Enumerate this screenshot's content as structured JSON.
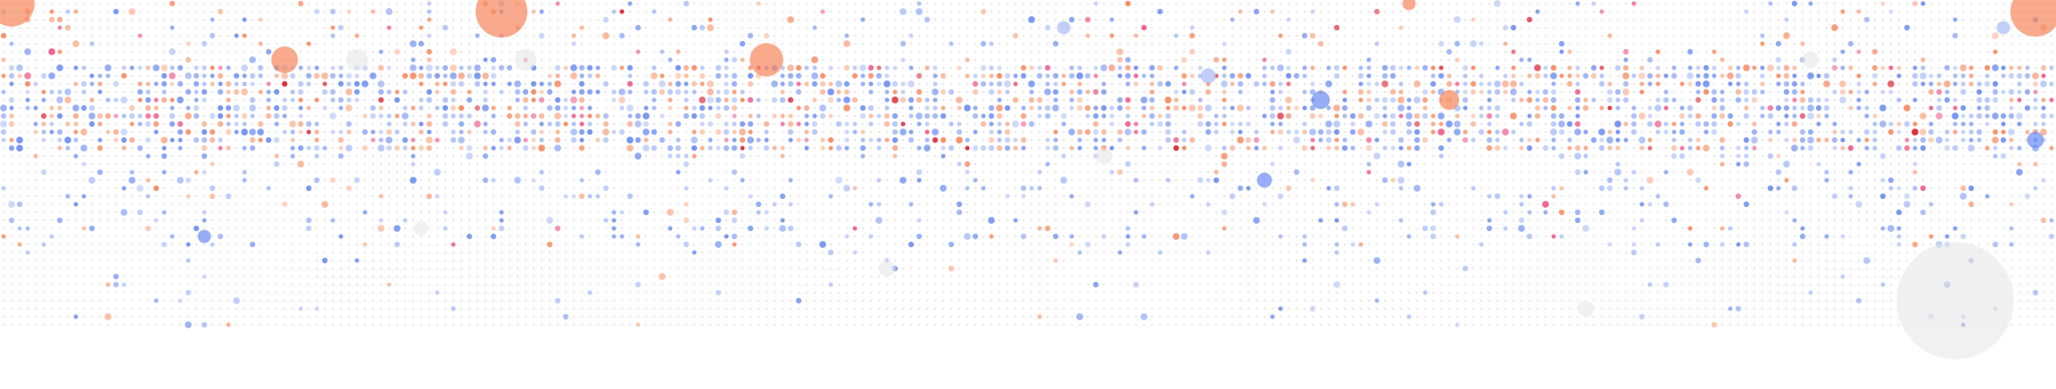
{
  "chart_data": {
    "type": "scatter",
    "grid": false,
    "legend": "none",
    "colors": {
      "background": "#ffffff",
      "neutral": "#dadada",
      "blue": "#6f8ff2",
      "light_blue": "#a9bdf7",
      "salmon": "#f7895f",
      "light_salmon": "#f9b292",
      "pink": "#f05a8c",
      "red": "#d8202f",
      "grey_bubble": "#e6e6e6"
    },
    "matrix": {
      "columns": 257,
      "rows": 41,
      "bands": [
        {
          "rows": [
            0,
            7
          ],
          "occupancy": 0.12,
          "mix": {
            "blue": 0.3,
            "light_blue": 0.25,
            "salmon": 0.2,
            "light_salmon": 0.18,
            "pink": 0.05,
            "red": 0.02
          }
        },
        {
          "rows": [
            8,
            18
          ],
          "occupancy": 0.62,
          "mix": {
            "blue": 0.34,
            "light_blue": 0.32,
            "salmon": 0.14,
            "light_salmon": 0.14,
            "pink": 0.04,
            "red": 0.02
          }
        },
        {
          "rows": [
            19,
            30
          ],
          "occupancy": 0.14,
          "mix": {
            "blue": 0.38,
            "light_blue": 0.44,
            "salmon": 0.06,
            "light_salmon": 0.1,
            "pink": 0.02,
            "red": 0.0
          }
        },
        {
          "rows": [
            31,
            40
          ],
          "occupancy": 0.03,
          "mix": {
            "blue": 0.3,
            "light_blue": 0.6,
            "salmon": 0.0,
            "light_salmon": 0.1,
            "pink": 0.0,
            "red": 0.0
          }
        }
      ]
    },
    "highlighted": [
      {
        "col": 1,
        "row": 0,
        "magnitude": 5.5,
        "color": "salmon"
      },
      {
        "col": 62,
        "row": 1,
        "magnitude": 6.2,
        "color": "salmon"
      },
      {
        "col": 253,
        "row": 1,
        "magnitude": 6.0,
        "color": "salmon"
      },
      {
        "col": 175,
        "row": 0,
        "magnitude": 1.6,
        "color": "salmon"
      },
      {
        "col": 35,
        "row": 7,
        "magnitude": 3.2,
        "color": "salmon"
      },
      {
        "col": 95,
        "row": 7,
        "magnitude": 4.0,
        "color": "salmon"
      },
      {
        "col": 44,
        "row": 7,
        "magnitude": 2.6,
        "color": "grey_bubble"
      },
      {
        "col": 65,
        "row": 7,
        "magnitude": 2.6,
        "color": "grey_bubble"
      },
      {
        "col": 225,
        "row": 7,
        "magnitude": 2.0,
        "color": "grey_bubble"
      },
      {
        "col": 150,
        "row": 9,
        "magnitude": 1.8,
        "color": "light_blue"
      },
      {
        "col": 132,
        "row": 3,
        "magnitude": 1.6,
        "color": "light_blue"
      },
      {
        "col": 249,
        "row": 3,
        "magnitude": 1.6,
        "color": "light_blue"
      },
      {
        "col": 164,
        "row": 12,
        "magnitude": 2.2,
        "color": "blue"
      },
      {
        "col": 180,
        "row": 12,
        "magnitude": 2.4,
        "color": "salmon"
      },
      {
        "col": 253,
        "row": 17,
        "magnitude": 2.0,
        "color": "blue"
      },
      {
        "col": 157,
        "row": 22,
        "magnitude": 1.8,
        "color": "blue"
      },
      {
        "col": 137,
        "row": 19,
        "magnitude": 2.0,
        "color": "grey_bubble"
      },
      {
        "col": 25,
        "row": 29,
        "magnitude": 1.6,
        "color": "blue"
      },
      {
        "col": 52,
        "row": 28,
        "magnitude": 1.7,
        "color": "grey_bubble"
      },
      {
        "col": 110,
        "row": 33,
        "magnitude": 2.0,
        "color": "grey_bubble"
      },
      {
        "col": 197,
        "row": 38,
        "magnitude": 2.0,
        "color": "grey_bubble"
      },
      {
        "col": 243,
        "row": 37,
        "magnitude": 14.0,
        "color": "grey_bubble"
      }
    ]
  }
}
